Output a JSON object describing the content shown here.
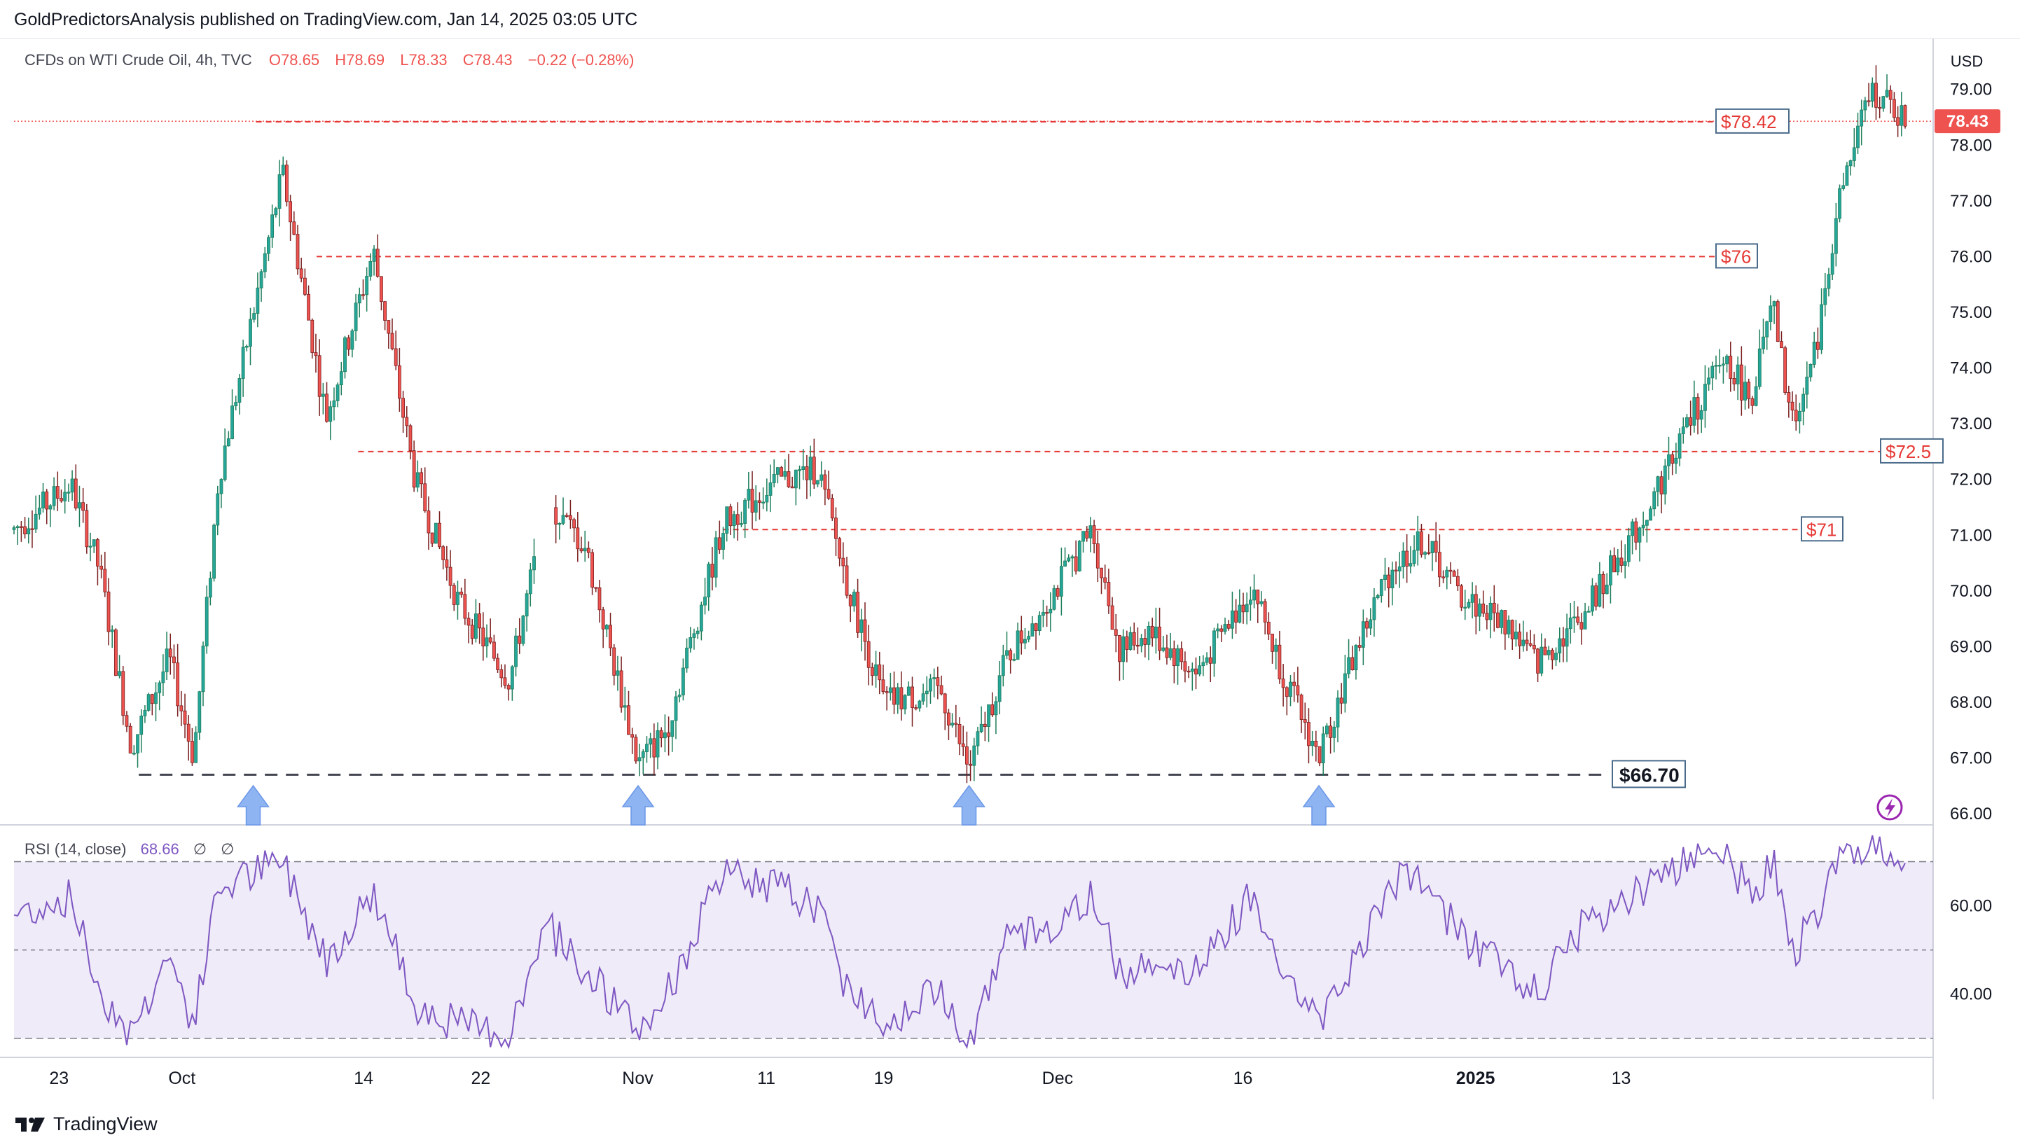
{
  "published": "GoldPredictorsAnalysis published on TradingView.com, Jan 14, 2025 03:05 UTC",
  "brand": "TradingView",
  "symbol": {
    "name": "CFDs on WTI Crude Oil, 4h, TVC",
    "open": "O78.65",
    "high": "H78.69",
    "low": "L78.33",
    "close": "C78.43",
    "change": "−0.22 (−0.28%)"
  },
  "currency": "USD",
  "last_price": "78.43",
  "rsi_legend": {
    "name": "RSI (14, close)",
    "value": "68.66",
    "extra1": "∅",
    "extra2": "∅"
  },
  "colors": {
    "up": "#26a69a",
    "down": "#ef5350",
    "upstroke": "#1e7e5a",
    "downstroke": "#7a1f1f",
    "rsi": "#7e57c2",
    "level": "#e53935",
    "support": "#434651",
    "arrow": "#8fb4f2"
  },
  "price_axis": {
    "ticks": [
      "79.00",
      "78.00",
      "77.00",
      "76.00",
      "75.00",
      "74.00",
      "73.00",
      "72.00",
      "71.00",
      "70.00",
      "69.00",
      "68.00",
      "67.00",
      "66.00"
    ]
  },
  "rsi_axis": {
    "ticks": [
      "60.00",
      "40.00"
    ]
  },
  "time_axis": {
    "ticks": [
      "23",
      "Oct",
      "14",
      "22",
      "Nov",
      "11",
      "19",
      "Dec",
      "16",
      "2025",
      "13"
    ]
  },
  "levels": [
    {
      "label": "$78.42",
      "value": 78.42
    },
    {
      "label": "$76",
      "value": 76.0
    },
    {
      "label": "$72.5",
      "value": 72.5
    },
    {
      "label": "$71",
      "value": 71.1
    }
  ],
  "support": {
    "label": "$66.70",
    "value": 66.7
  },
  "chart_data": {
    "type": "candlestick",
    "timeframe": "4h",
    "ylim": [
      65.8,
      79.6
    ],
    "rsi_ylim": [
      26,
      78
    ],
    "rsi_levels": [
      70,
      50,
      30
    ],
    "anchors": [
      {
        "x": 0.0,
        "price": 71.1,
        "rsi": 58
      },
      {
        "x": 0.03,
        "price": 71.9,
        "rsi": 62
      },
      {
        "x": 0.045,
        "price": 70.4,
        "rsi": 41
      },
      {
        "x": 0.062,
        "price": 67.2,
        "rsi": 31
      },
      {
        "x": 0.082,
        "price": 68.8,
        "rsi": 49
      },
      {
        "x": 0.095,
        "price": 67.0,
        "rsi": 33
      },
      {
        "x": 0.108,
        "price": 72.0,
        "rsi": 64
      },
      {
        "x": 0.142,
        "price": 77.5,
        "rsi": 70
      },
      {
        "x": 0.165,
        "price": 73.1,
        "rsi": 48
      },
      {
        "x": 0.19,
        "price": 76.1,
        "rsi": 63
      },
      {
        "x": 0.212,
        "price": 72.0,
        "rsi": 38
      },
      {
        "x": 0.235,
        "price": 69.8,
        "rsi": 33
      },
      {
        "x": 0.262,
        "price": 68.4,
        "rsi": 31
      },
      {
        "x": 0.282,
        "price": 71.6,
        "rsi": 55
      },
      {
        "x": 0.302,
        "price": 70.8,
        "rsi": 46
      },
      {
        "x": 0.33,
        "price": 66.9,
        "rsi": 31
      },
      {
        "x": 0.345,
        "price": 67.5,
        "rsi": 40
      },
      {
        "x": 0.375,
        "price": 71.2,
        "rsi": 67
      },
      {
        "x": 0.4,
        "price": 71.9,
        "rsi": 65
      },
      {
        "x": 0.425,
        "price": 72.2,
        "rsi": 60
      },
      {
        "x": 0.44,
        "price": 70.2,
        "rsi": 42
      },
      {
        "x": 0.46,
        "price": 68.0,
        "rsi": 34
      },
      {
        "x": 0.49,
        "price": 68.2,
        "rsi": 41
      },
      {
        "x": 0.505,
        "price": 66.8,
        "rsi": 30
      },
      {
        "x": 0.525,
        "price": 68.8,
        "rsi": 52
      },
      {
        "x": 0.552,
        "price": 70.1,
        "rsi": 56
      },
      {
        "x": 0.57,
        "price": 71.1,
        "rsi": 62
      },
      {
        "x": 0.585,
        "price": 68.9,
        "rsi": 45
      },
      {
        "x": 0.6,
        "price": 69.3,
        "rsi": 48
      },
      {
        "x": 0.625,
        "price": 68.5,
        "rsi": 45
      },
      {
        "x": 0.655,
        "price": 70.1,
        "rsi": 63
      },
      {
        "x": 0.67,
        "price": 68.6,
        "rsi": 48
      },
      {
        "x": 0.69,
        "price": 67.0,
        "rsi": 33
      },
      {
        "x": 0.71,
        "price": 69.0,
        "rsi": 49
      },
      {
        "x": 0.728,
        "price": 70.4,
        "rsi": 66
      },
      {
        "x": 0.745,
        "price": 70.9,
        "rsi": 65
      },
      {
        "x": 0.765,
        "price": 69.9,
        "rsi": 53
      },
      {
        "x": 0.79,
        "price": 69.4,
        "rsi": 46
      },
      {
        "x": 0.805,
        "price": 68.7,
        "rsi": 40
      },
      {
        "x": 0.83,
        "price": 69.6,
        "rsi": 56
      },
      {
        "x": 0.86,
        "price": 71.2,
        "rsi": 64
      },
      {
        "x": 0.885,
        "price": 73.0,
        "rsi": 71
      },
      {
        "x": 0.905,
        "price": 74.2,
        "rsi": 72
      },
      {
        "x": 0.918,
        "price": 73.4,
        "rsi": 62
      },
      {
        "x": 0.93,
        "price": 75.1,
        "rsi": 70
      },
      {
        "x": 0.94,
        "price": 73.0,
        "rsi": 48
      },
      {
        "x": 0.952,
        "price": 74.2,
        "rsi": 58
      },
      {
        "x": 0.965,
        "price": 77.0,
        "rsi": 69
      },
      {
        "x": 0.982,
        "price": 79.0,
        "rsi": 72
      },
      {
        "x": 1.0,
        "price": 78.43,
        "rsi": 68.66
      }
    ],
    "rising_arrows_at_lows": 4
  }
}
